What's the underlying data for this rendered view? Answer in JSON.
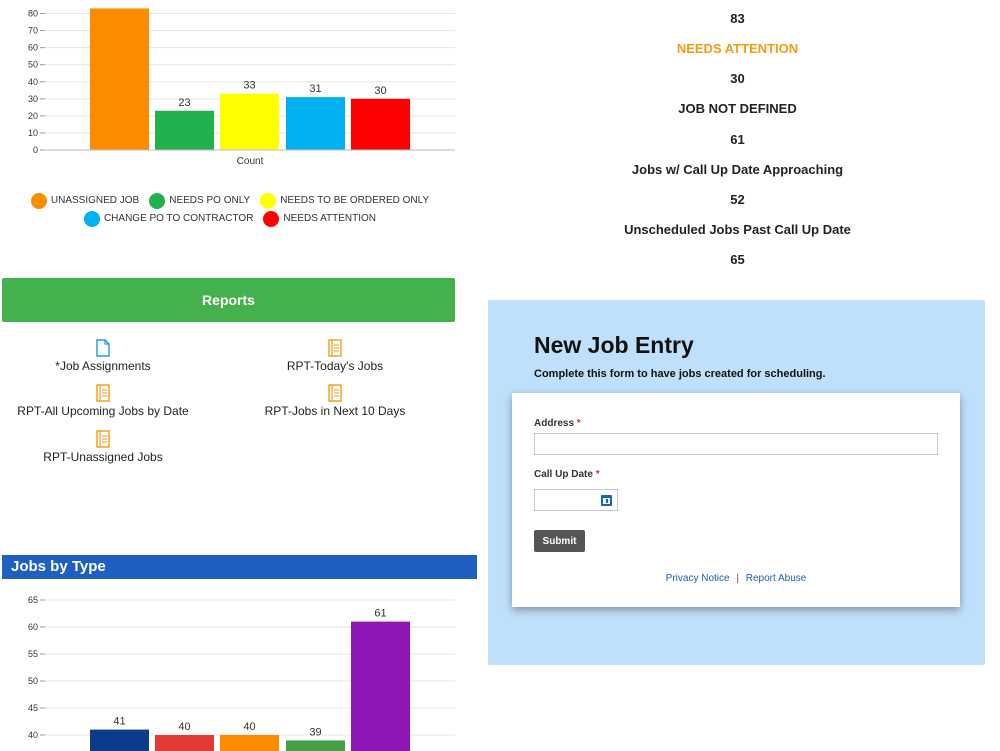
{
  "chart_data": [
    {
      "type": "bar",
      "categories": [
        "UNASSIGNED JOB",
        "NEEDS PO ONLY",
        "NEEDS TO BE ORDERED ONLY",
        "CHANGE PO TO CONTRACTOR",
        "NEEDS ATTENTION"
      ],
      "values": [
        83,
        23,
        33,
        31,
        30
      ],
      "value_labels": [
        "",
        "23",
        "33",
        "31",
        "30"
      ],
      "colors": [
        "#fb8c00",
        "#22b14c",
        "#ffff00",
        "#00b0f0",
        "#ff0000"
      ],
      "xlabel": "Count",
      "yticks": [
        "80",
        "70",
        "60",
        "50",
        "40",
        "30",
        "20",
        "10",
        "0"
      ],
      "ylim": [
        0,
        88
      ],
      "legend": "bottom",
      "grid": true
    },
    {
      "type": "bar",
      "values": [
        41,
        40,
        40,
        39,
        61
      ],
      "value_labels": [
        "41",
        "40",
        "40",
        "39",
        "61"
      ],
      "colors": [
        "#0d3c8c",
        "#e53935",
        "#fb8c00",
        "#43a047",
        "#8e16b4"
      ],
      "yticks": [
        "65",
        "60",
        "55",
        "50",
        "45",
        "40"
      ],
      "grid": true
    }
  ],
  "legend": {
    "row1": [
      {
        "label": "UNASSIGNED JOB",
        "color": "#fb8c00"
      },
      {
        "label": "NEEDS PO ONLY",
        "color": "#22b14c"
      },
      {
        "label": "NEEDS TO BE ORDERED ONLY",
        "color": "#ffff00"
      }
    ],
    "row2": [
      {
        "label": "CHANGE PO TO CONTRACTOR",
        "color": "#00b0f0"
      },
      {
        "label": "NEEDS ATTENTION",
        "color": "#ff0000"
      }
    ]
  },
  "stats": {
    "s1_value": "83",
    "s2_label": "NEEDS ATTENTION",
    "s2_value": "30",
    "s3_label": "JOB NOT DEFINED",
    "s3_value": "61",
    "s4_label": "Jobs w/ Call Up Date Approaching",
    "s4_value": "52",
    "s5_label": "Unscheduled Jobs Past Call Up Date",
    "s5_value": "65",
    "accent_color": "#f39c12"
  },
  "reports": {
    "title": "Reports",
    "items": [
      {
        "label": "*Job Assignments",
        "icon": "document-icon"
      },
      {
        "label": "RPT-Today's Jobs",
        "icon": "report-icon"
      },
      {
        "label": "RPT-All Upcoming Jobs by Date",
        "icon": "report-icon"
      },
      {
        "label": "RPT-Jobs in Next 10 Days",
        "icon": "report-icon"
      },
      {
        "label": "RPT-Unassigned Jobs",
        "icon": "report-icon"
      }
    ]
  },
  "jobs_by_type": {
    "title": "Jobs by Type"
  },
  "form": {
    "title": "New Job Entry",
    "subtitle": "Complete this form to have jobs created for scheduling.",
    "address_label": "Address",
    "address_value": "",
    "call_up_label": "Call Up Date",
    "call_up_value": "",
    "required_mark": "*",
    "submit_label": "Submit",
    "privacy_link": "Privacy Notice",
    "separator": "|",
    "abuse_link": "Report Abuse"
  }
}
